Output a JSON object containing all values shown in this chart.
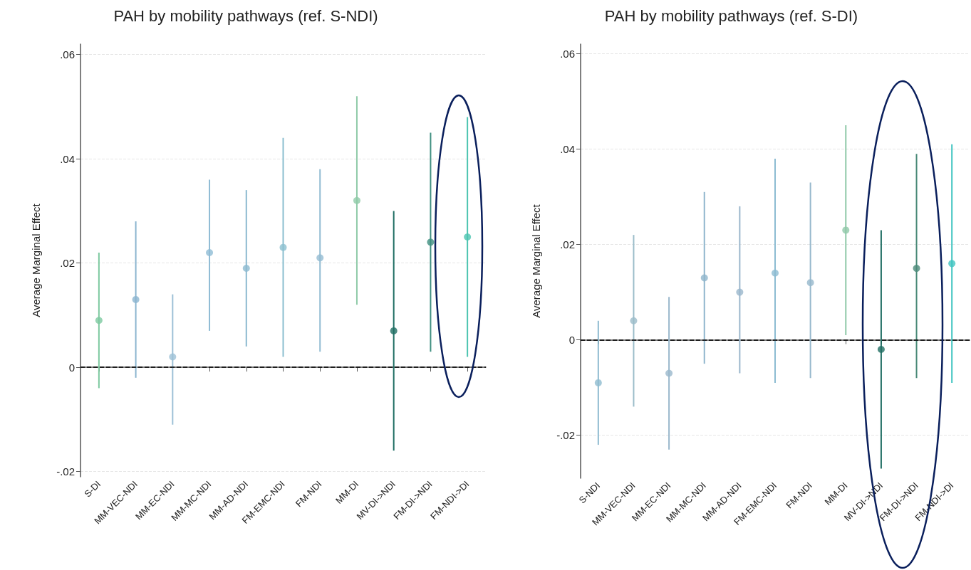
{
  "chart_data": [
    {
      "type": "scatter",
      "title": "PAH by mobility pathways (ref. S-NDI)",
      "ylabel": "Average Marginal Effect",
      "categories": [
        "S-DI",
        "MM-VEC-NDI",
        "MM-EC-NDI",
        "MM-MC-NDI",
        "MM-AD-NDI",
        "FM-EMC-NDI",
        "FM-NDI",
        "MM-DI",
        "MV-DI->NDI",
        "FM-DI->NDI",
        "FM-NDI->DI"
      ],
      "values": [
        0.009,
        0.013,
        0.002,
        0.022,
        0.019,
        0.023,
        0.021,
        0.032,
        0.007,
        0.024,
        0.025
      ],
      "errors": [
        [
          -0.004,
          0.022
        ],
        [
          -0.002,
          0.028
        ],
        [
          -0.011,
          0.014
        ],
        [
          0.007,
          0.036
        ],
        [
          0.004,
          0.034
        ],
        [
          0.002,
          0.044
        ],
        [
          0.003,
          0.038
        ],
        [
          0.012,
          0.052
        ],
        [
          -0.016,
          0.03
        ],
        [
          0.003,
          0.045
        ],
        [
          0.002,
          0.048
        ]
      ],
      "colors": [
        "#7dc9a0",
        "#8ab4cf",
        "#9cc0d6",
        "#8fbbd4",
        "#8bb9cf",
        "#8bbfcf",
        "#93bcd2",
        "#8fcaa8",
        "#1f6e63",
        "#3f8f80",
        "#4cc4b0"
      ],
      "ylim": [
        -0.021,
        0.062
      ],
      "yticks": [
        {
          "value": -0.02,
          "label": "-.02"
        },
        0,
        {
          "value": 0.02,
          "label": ".02"
        },
        {
          "value": 0.04,
          "label": ".04"
        },
        {
          "value": 0.06,
          "label": ".06"
        }
      ],
      "grid": "y",
      "marker": "circle",
      "ref_lines": [
        {
          "axis": "y",
          "value": 0,
          "color": "#000000",
          "line_style": "dashed"
        }
      ]
    },
    {
      "type": "scatter",
      "title": "PAH by mobility pathways (ref. S-DI)",
      "ylabel": "Average Marginal Effect",
      "categories": [
        "S-NDI",
        "MM-VEC-NDI",
        "MM-EC-NDI",
        "MM-MC-NDI",
        "MM-AD-NDI",
        "FM-EMC-NDI",
        "FM-NDI",
        "MM-DI",
        "MV-DI->NDI",
        "FM-DI->NDI",
        "FM-NDI->DI"
      ],
      "values": [
        -0.009,
        0.004,
        -0.007,
        0.013,
        0.01,
        0.014,
        0.012,
        0.023,
        -0.002,
        0.015,
        0.016
      ],
      "errors": [
        [
          -0.022,
          0.004
        ],
        [
          -0.014,
          0.022
        ],
        [
          -0.023,
          0.009
        ],
        [
          -0.005,
          0.031
        ],
        [
          -0.007,
          0.028
        ],
        [
          -0.009,
          0.038
        ],
        [
          -0.008,
          0.033
        ],
        [
          0.001,
          0.045
        ],
        [
          -0.027,
          0.023
        ],
        [
          -0.008,
          0.039
        ],
        [
          -0.009,
          0.041
        ]
      ],
      "colors": [
        "#8fbbd0",
        "#9bbcc9",
        "#9ab8cc",
        "#8fb5cc",
        "#9ab6cc",
        "#8cbcd2",
        "#96b8cc",
        "#8ec8a8",
        "#1f6e63",
        "#4a8a78",
        "#40c4c0"
      ],
      "ylim": [
        -0.029,
        0.062
      ],
      "yticks": [
        {
          "value": -0.02,
          "label": "-.02"
        },
        0,
        {
          "value": 0.02,
          "label": ".02"
        },
        {
          "value": 0.04,
          "label": ".04"
        },
        {
          "value": 0.06,
          "label": ".06"
        }
      ],
      "grid": "y",
      "marker": "circle",
      "ref_lines": [
        {
          "axis": "y",
          "value": 0,
          "color": "#000000",
          "line_style": "dashed"
        }
      ]
    }
  ]
}
